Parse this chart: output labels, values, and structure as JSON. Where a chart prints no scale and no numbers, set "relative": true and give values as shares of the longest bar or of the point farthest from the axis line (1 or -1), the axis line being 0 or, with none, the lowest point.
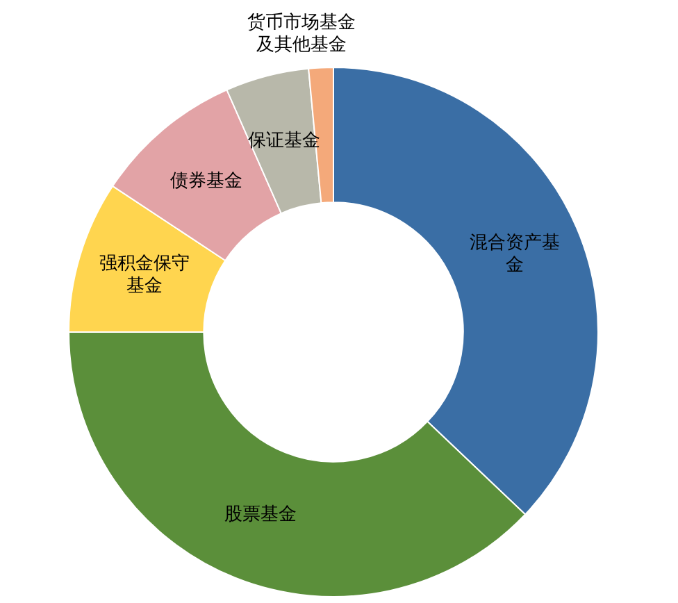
{
  "chart_data": {
    "type": "donut",
    "relative": true,
    "categories": [
      "混合资产基金",
      "股票基金",
      "强积金保守基金",
      "债券基金",
      "保证基金",
      "货币市场基金及其他基金"
    ],
    "values": [
      37.1,
      37.9,
      9.3,
      9.1,
      5.1,
      1.5
    ],
    "colors": [
      "#3a6ea5",
      "#5b8f3a",
      "#ffd54f",
      "#e2a3a6",
      "#b8b8aa",
      "#f4a97a"
    ],
    "legend": false
  }
}
